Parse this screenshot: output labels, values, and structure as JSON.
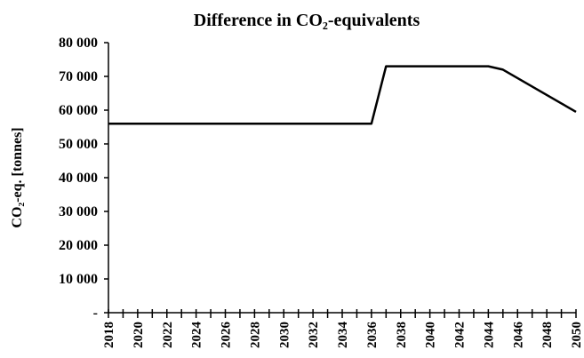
{
  "chart_data": {
    "type": "line",
    "title": "Difference in CO₂-equivalents",
    "y_label": "CO₂-eq. [tonnes]",
    "x": [
      2018,
      2019,
      2020,
      2021,
      2022,
      2023,
      2024,
      2025,
      2026,
      2027,
      2028,
      2029,
      2030,
      2031,
      2032,
      2033,
      2034,
      2035,
      2036,
      2037,
      2038,
      2039,
      2040,
      2041,
      2042,
      2043,
      2044,
      2045,
      2046,
      2047,
      2048,
      2049,
      2050
    ],
    "series": [
      {
        "color": "#000000",
        "values": [
          56000,
          56000,
          56000,
          56000,
          56000,
          56000,
          56000,
          56000,
          56000,
          56000,
          56000,
          56000,
          56000,
          56000,
          56000,
          56000,
          56000,
          56000,
          56000,
          73000,
          73000,
          73000,
          73000,
          73000,
          73000,
          73000,
          73000,
          72000,
          69500,
          67000,
          64500,
          62000,
          59500
        ]
      }
    ],
    "xlim": [
      2018,
      2050
    ],
    "xticks": [
      2018,
      2020,
      2022,
      2024,
      2026,
      2028,
      2030,
      2032,
      2034,
      2036,
      2038,
      2040,
      2042,
      2044,
      2046,
      2048,
      2050
    ],
    "xminorticks": [
      2019,
      2021,
      2023,
      2025,
      2027,
      2029,
      2031,
      2033,
      2035,
      2037,
      2039,
      2041,
      2043,
      2045,
      2047,
      2049
    ],
    "ylim": [
      0,
      80000
    ],
    "yticks": [
      {
        "value": 0,
        "label": "-"
      },
      {
        "value": 10000,
        "label": "10 000"
      },
      {
        "value": 20000,
        "label": "20 000"
      },
      {
        "value": 30000,
        "label": "30 000"
      },
      {
        "value": 40000,
        "label": "40 000"
      },
      {
        "value": 50000,
        "label": "50 000"
      },
      {
        "value": 60000,
        "label": "60 000"
      },
      {
        "value": 70000,
        "label": "70 000"
      },
      {
        "value": 80000,
        "label": "80 000"
      }
    ],
    "grid": false
  }
}
